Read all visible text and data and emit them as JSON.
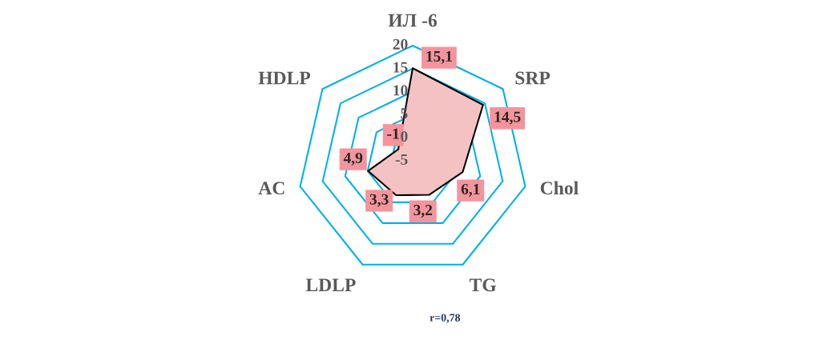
{
  "chart_data": {
    "type": "radar",
    "categories": [
      "ИЛ -6",
      "SRP",
      "Chol",
      "TG",
      "LDLP",
      "AC",
      "HDLP"
    ],
    "series": [
      {
        "color": "#f4c2c2",
        "values": [
          15.1,
          14.5,
          6.1,
          3.2,
          3.3,
          4.9,
          -1
        ],
        "value_labels": [
          "15,1",
          "14,5",
          "6,1",
          "3,2",
          "3,3",
          "4,9",
          "-1"
        ]
      }
    ],
    "ylim": [
      -5,
      20
    ],
    "yticks": [
      -5,
      0,
      5,
      10,
      15,
      20
    ],
    "grid": true,
    "annotations": [
      "r=0,78"
    ]
  }
}
